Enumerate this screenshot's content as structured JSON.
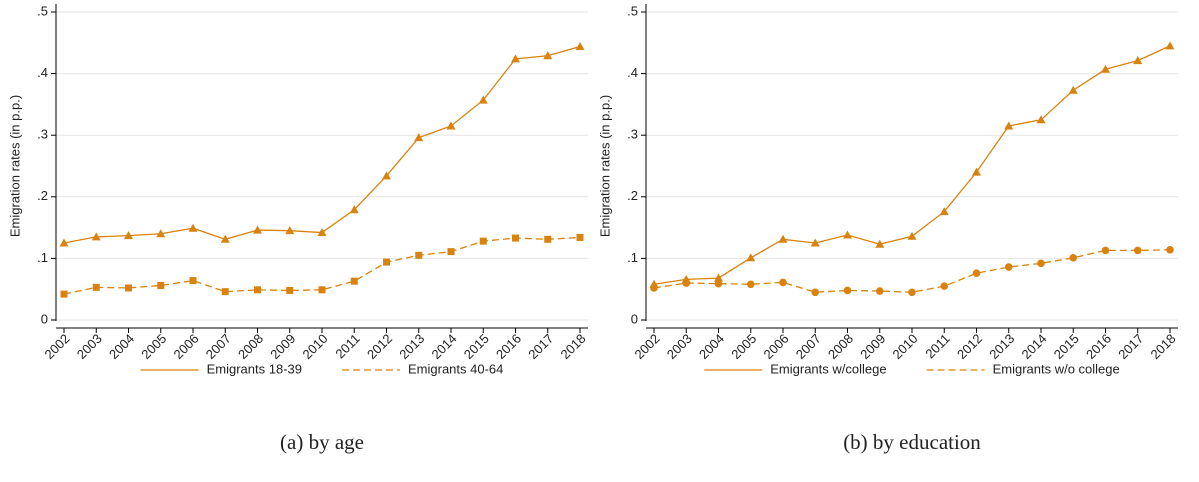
{
  "chart_data": [
    {
      "type": "line",
      "caption": "(a) by age",
      "y_label": "Emigration rates (in p.p.)",
      "categories": [
        "2002",
        "2003",
        "2004",
        "2005",
        "2006",
        "2007",
        "2008",
        "2009",
        "2010",
        "2011",
        "2012",
        "2013",
        "2014",
        "2015",
        "2016",
        "2017",
        "2018"
      ],
      "series": [
        {
          "name": "Emigrants 18-39",
          "color": "#d9820f",
          "marker": "triangle",
          "dash": false,
          "values": [
            0.125,
            0.135,
            0.137,
            0.14,
            0.149,
            0.131,
            0.146,
            0.145,
            0.142,
            0.179,
            0.234,
            0.296,
            0.315,
            0.357,
            0.424,
            0.429,
            0.444
          ]
        },
        {
          "name": "Emigrants 40-64",
          "color": "#d9820f",
          "marker": "square",
          "dash": true,
          "values": [
            0.042,
            0.053,
            0.052,
            0.056,
            0.064,
            0.046,
            0.049,
            0.048,
            0.049,
            0.063,
            0.094,
            0.105,
            0.111,
            0.128,
            0.133,
            0.131,
            0.134
          ]
        }
      ],
      "ylim": [
        0,
        0.5
      ],
      "yticks": [
        0,
        {
          "value": 0.1,
          "label": ".1"
        },
        {
          "value": 0.2,
          "label": ".2"
        },
        {
          "value": 0.3,
          "label": ".3"
        },
        {
          "value": 0.4,
          "label": ".4"
        },
        {
          "value": 0.5,
          "label": ".5"
        }
      ],
      "grid": true
    },
    {
      "type": "line",
      "caption": "(b) by education",
      "y_label": "Emigration rates (in p.p.)",
      "categories": [
        "2002",
        "2003",
        "2004",
        "2005",
        "2006",
        "2007",
        "2008",
        "2009",
        "2010",
        "2011",
        "2012",
        "2013",
        "2014",
        "2015",
        "2016",
        "2017",
        "2018"
      ],
      "series": [
        {
          "name": "Emigrants w/college",
          "color": "#d9820f",
          "marker": "triangle",
          "dash": false,
          "values": [
            0.058,
            0.066,
            0.068,
            0.101,
            0.131,
            0.125,
            0.138,
            0.123,
            0.136,
            0.176,
            0.24,
            0.315,
            0.325,
            0.373,
            0.407,
            0.421,
            0.445
          ]
        },
        {
          "name": "Emigrants w/o college",
          "color": "#d9820f",
          "marker": "circle",
          "dash": true,
          "values": [
            0.052,
            0.06,
            0.059,
            0.058,
            0.061,
            0.045,
            0.048,
            0.047,
            0.045,
            0.055,
            0.076,
            0.086,
            0.092,
            0.101,
            0.113,
            0.113,
            0.114
          ]
        }
      ],
      "ylim": [
        0,
        0.5
      ],
      "yticks": [
        0,
        {
          "value": 0.1,
          "label": ".1"
        },
        {
          "value": 0.2,
          "label": ".2"
        },
        {
          "value": 0.3,
          "label": ".3"
        },
        {
          "value": 0.4,
          "label": ".4"
        },
        {
          "value": 0.5,
          "label": ".5"
        }
      ],
      "grid": true
    }
  ]
}
